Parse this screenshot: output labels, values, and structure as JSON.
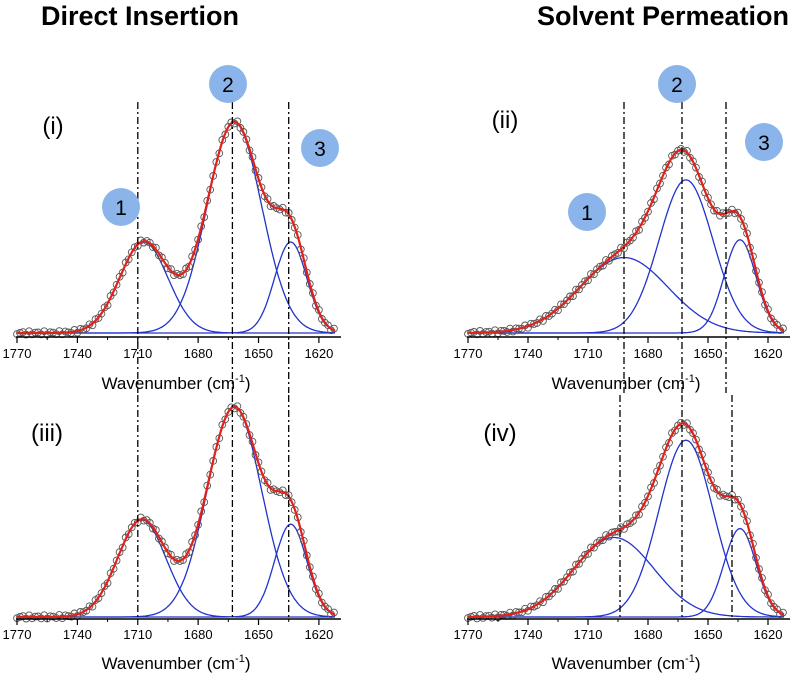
{
  "columns": {
    "left_title": "Direct Insertion",
    "right_title": "Solvent Permeation"
  },
  "colors": {
    "experimental": "#555555",
    "fit": "#e0211c",
    "component": "#2233cc",
    "badge_fill": "#8ab4ea",
    "axis": "#000000"
  },
  "chart_data": [
    {
      "type": "line",
      "panel_label": "(i)",
      "xlabel": "Wavenumber (cm",
      "xlabel_sup": "-1",
      "xlabel_close": ")",
      "xlim": [
        1770,
        1612
      ],
      "xticks": [
        1770,
        1740,
        1710,
        1680,
        1650,
        1620
      ],
      "ylim": [
        0,
        1.05
      ],
      "components": [
        {
          "badge": "1",
          "center": 1707,
          "amplitude": 0.41,
          "width": 12
        },
        {
          "badge": "2",
          "center": 1662,
          "amplitude": 0.95,
          "width": 13.5
        },
        {
          "badge": "3",
          "center": 1634,
          "amplitude": 0.41,
          "width": 8
        }
      ],
      "guides": [
        1710,
        1663,
        1635
      ]
    },
    {
      "type": "line",
      "panel_label": "(ii)",
      "xlabel": "Wavenumber (cm",
      "xlabel_sup": "-1",
      "xlabel_close": ")",
      "xlim": [
        1770,
        1612
      ],
      "xticks": [
        1770,
        1740,
        1710,
        1680,
        1650,
        1620
      ],
      "ylim": [
        0,
        1.05
      ],
      "components": [
        {
          "badge": "1",
          "center": 1692,
          "amplitude": 0.34,
          "width": 22
        },
        {
          "badge": "2",
          "center": 1661,
          "amplitude": 0.69,
          "width": 13.5
        },
        {
          "badge": "3",
          "center": 1634,
          "amplitude": 0.42,
          "width": 8
        }
      ],
      "guides": [
        1692,
        1663,
        1641
      ]
    },
    {
      "type": "line",
      "panel_label": "(iii)",
      "xlabel": "Wavenumber (cm",
      "xlabel_sup": "-1",
      "xlabel_close": ")",
      "xlim": [
        1770,
        1612
      ],
      "xticks": [
        1770,
        1740,
        1710,
        1680,
        1650,
        1620
      ],
      "ylim": [
        0,
        1.05
      ],
      "components": [
        {
          "badge": "1",
          "center": 1708,
          "amplitude": 0.44,
          "width": 12
        },
        {
          "badge": "2",
          "center": 1662,
          "amplitude": 0.95,
          "width": 13.5
        },
        {
          "badge": "3",
          "center": 1634,
          "amplitude": 0.42,
          "width": 8
        }
      ],
      "guides": [
        1710,
        1663,
        1635
      ]
    },
    {
      "type": "line",
      "panel_label": "(iv)",
      "xlabel": "Wavenumber (cm",
      "xlabel_sup": "-1",
      "xlabel_close": ")",
      "xlim": [
        1770,
        1612
      ],
      "xticks": [
        1770,
        1740,
        1710,
        1680,
        1650,
        1620
      ],
      "ylim": [
        0,
        1.05
      ],
      "components": [
        {
          "badge": "1",
          "center": 1697,
          "amplitude": 0.36,
          "width": 20
        },
        {
          "badge": "2",
          "center": 1661,
          "amplitude": 0.8,
          "width": 13.5
        },
        {
          "badge": "3",
          "center": 1634,
          "amplitude": 0.4,
          "width": 8
        }
      ],
      "guides": [
        1694,
        1663,
        1638
      ]
    }
  ]
}
